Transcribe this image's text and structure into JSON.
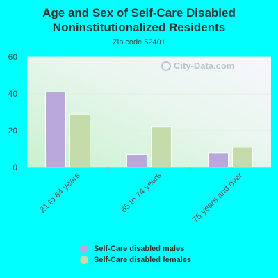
{
  "header": {
    "title_line1": "Age and Sex of Self-Care Disabled",
    "title_line2": "Noninstitutionalized Residents",
    "subtitle": "Zip code 52401"
  },
  "watermark": {
    "text": "City-Data.com",
    "icon": "magnifier-icon"
  },
  "colors": {
    "background": "#00FFFF",
    "males": "#BBA8DB",
    "females": "#C5DBA9",
    "text": "#333333"
  },
  "chart_data": {
    "type": "bar",
    "title": "Age and Sex of Self-Care Disabled Noninstitutionalized Residents",
    "subtitle": "Zip code 52401",
    "categories": [
      "21 to 64 years",
      "65 to 74 years",
      "75 years and over"
    ],
    "series": [
      {
        "name": "Self-Care disabled males",
        "values": [
          41,
          7,
          8
        ]
      },
      {
        "name": "Self-Care disabled females",
        "values": [
          29,
          22,
          11
        ]
      }
    ],
    "xlabel": "",
    "ylabel": "",
    "ylim": [
      0,
      60
    ],
    "yticks": [
      0,
      20,
      40,
      60
    ],
    "grid": true,
    "legend_position": "bottom"
  }
}
